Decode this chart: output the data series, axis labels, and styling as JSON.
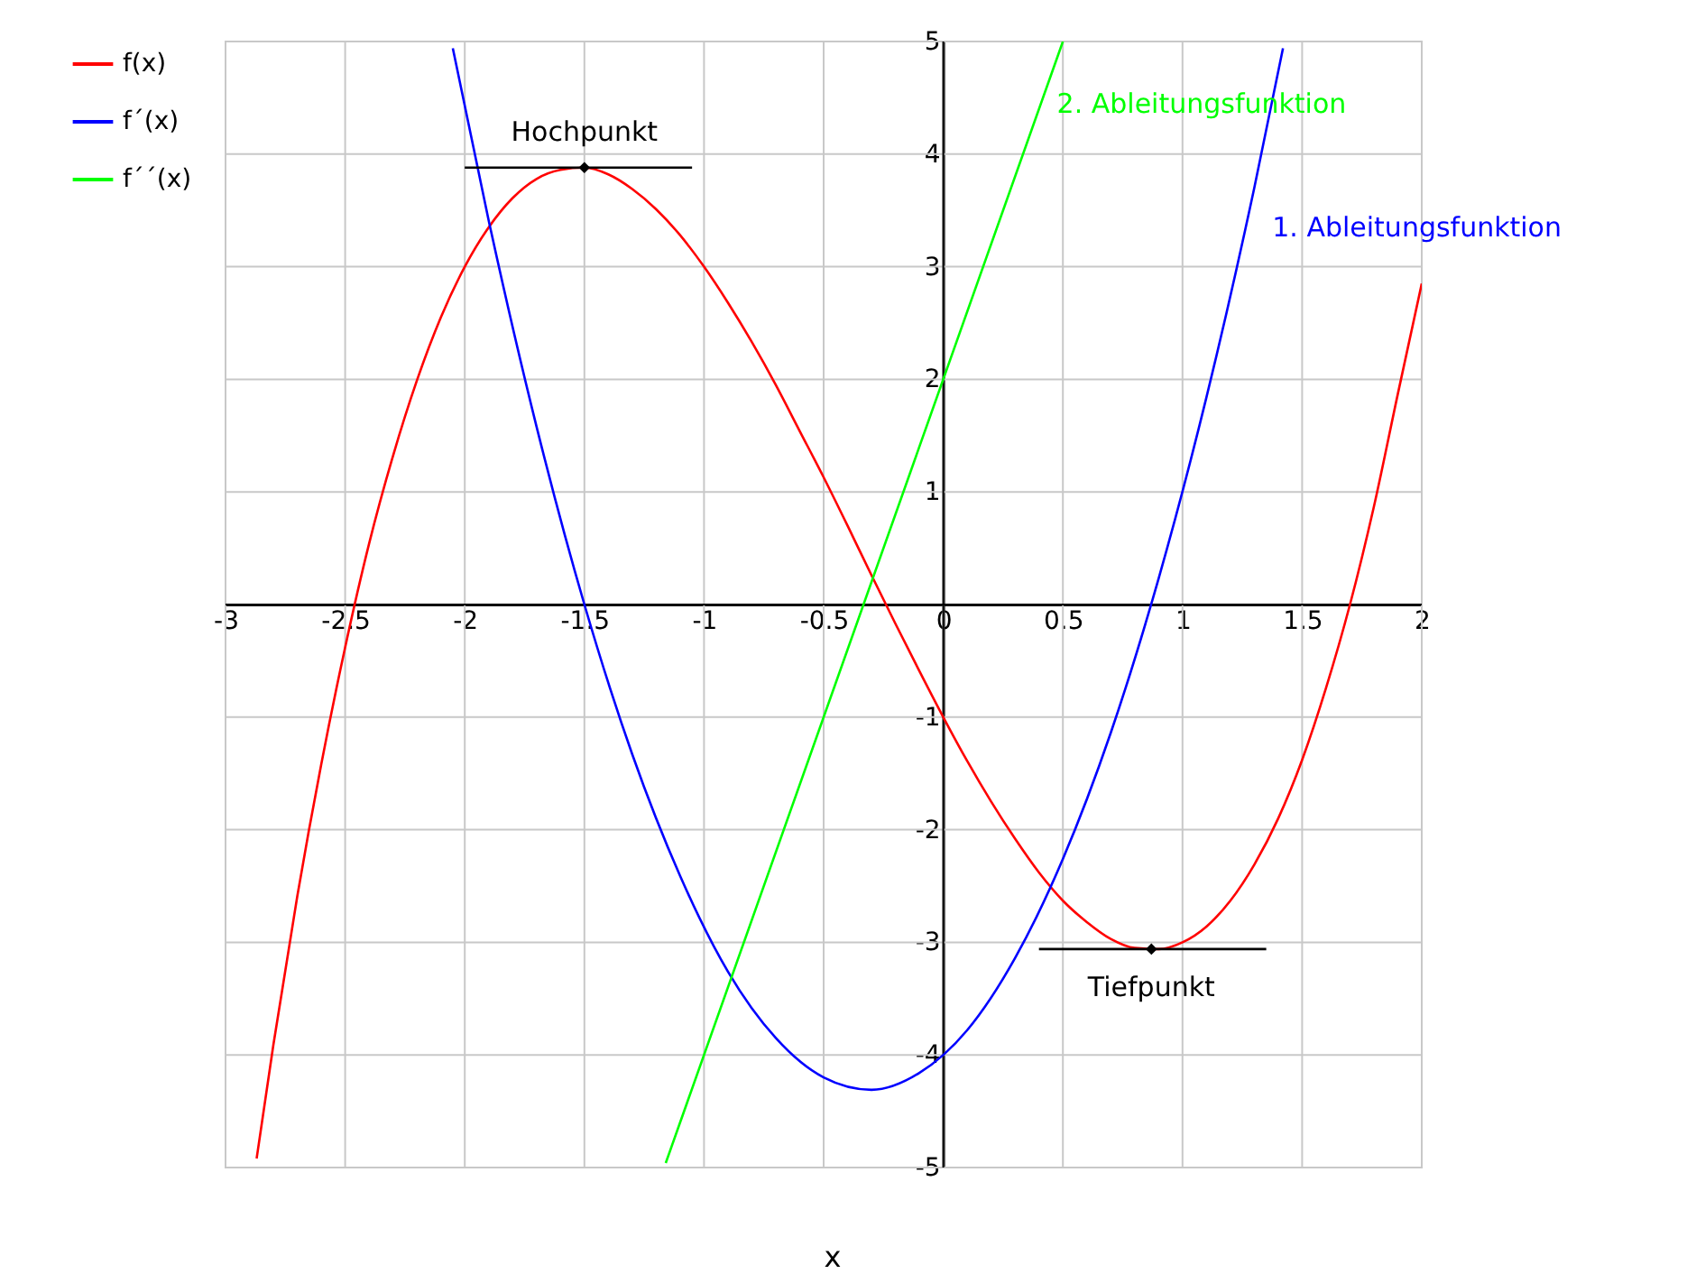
{
  "chart_data": {
    "type": "line",
    "xlabel": "x",
    "xlim": [
      -3,
      2
    ],
    "ylim": [
      -5,
      5
    ],
    "xticks": [
      -3,
      -2.5,
      -2,
      -1.5,
      -1,
      -0.5,
      0,
      0.5,
      1,
      1.5,
      2
    ],
    "yticks": [
      -5,
      -4,
      -3,
      -2,
      -1,
      {
        "value": 0,
        "label": null
      },
      1,
      2,
      3,
      4,
      5
    ],
    "grid": true,
    "legend": "left",
    "series": [
      {
        "name": "f(x)",
        "color": "#ff0000",
        "x": [
          -2.87,
          -2.8,
          -2.7,
          -2.6,
          -2.5,
          -2.4,
          -2.3,
          -2.2,
          -2.1,
          -2.0,
          -1.9,
          -1.8,
          -1.7,
          -1.6,
          -1.5,
          -1.4,
          -1.3,
          -1.2,
          -1.1,
          -1.0,
          -0.9,
          -0.8,
          -0.7,
          -0.6,
          -0.5,
          -0.4,
          -0.3,
          -0.2,
          -0.1,
          0,
          0.1,
          0.2,
          0.3,
          0.4,
          0.5,
          0.6,
          0.7,
          0.8,
          0.9,
          1.0,
          1.1,
          1.2,
          1.3,
          1.4,
          1.5,
          1.6,
          1.7,
          1.8,
          1.9,
          2.0
        ],
        "values": [
          -4.92,
          -3.91,
          -2.59,
          -1.42,
          -0.38,
          0.54,
          1.32,
          1.99,
          2.55,
          3.0,
          3.35,
          3.61,
          3.78,
          3.86,
          3.88,
          3.82,
          3.69,
          3.51,
          3.28,
          3.0,
          2.68,
          2.33,
          1.95,
          1.54,
          1.13,
          0.7,
          0.26,
          -0.17,
          -0.59,
          -1.0,
          -1.39,
          -1.75,
          -2.08,
          -2.38,
          -2.63,
          -2.82,
          -2.97,
          -3.05,
          -3.06,
          -3.0,
          -2.86,
          -2.63,
          -2.31,
          -1.9,
          -1.38,
          -0.74,
          0.0,
          0.87,
          1.87,
          2.85
        ]
      },
      {
        "name": "f´(x)",
        "color": "#0000ff",
        "x": [
          -2.05,
          -1.9,
          -1.7,
          -1.5,
          -1.3,
          -1.1,
          -0.9,
          -0.7,
          -0.5,
          -0.3,
          -0.1,
          0.1,
          0.3,
          0.5,
          0.7,
          0.9,
          1.1,
          1.3,
          1.42
        ],
        "values": [
          4.94,
          3.41,
          1.58,
          0.0,
          -1.33,
          -2.41,
          -3.26,
          -3.85,
          -4.2,
          -4.31,
          -4.16,
          -3.78,
          -3.14,
          -2.26,
          -1.14,
          0.23,
          1.84,
          3.7,
          4.94
        ]
      },
      {
        "name": "f´´(x)",
        "color": "#00ff00",
        "x": [
          -1.16,
          0.5
        ],
        "values": [
          -4.96,
          5.0
        ]
      },
      {
        "type": "line",
        "color": "#000000",
        "x": [
          -2.0,
          -1.05
        ],
        "values": [
          3.88,
          3.88
        ]
      },
      {
        "type": "line",
        "color": "#000000",
        "x": [
          0.4,
          1.35
        ],
        "values": [
          -3.06,
          -3.06
        ]
      },
      {
        "type": "scatter",
        "marker": "diamond",
        "color": "#000000",
        "x": [
          -1.5,
          0.87
        ],
        "values": [
          3.88,
          -3.06
        ]
      }
    ],
    "annotations": [
      {
        "text": "Hochpunkt",
        "x": -1.5,
        "y": 3.88
      },
      {
        "text": "Tiefpunkt",
        "x": 0.87,
        "y": -3.06
      },
      "2. Ableitungsfunktion",
      "1. Ableitungsfunktion"
    ]
  }
}
